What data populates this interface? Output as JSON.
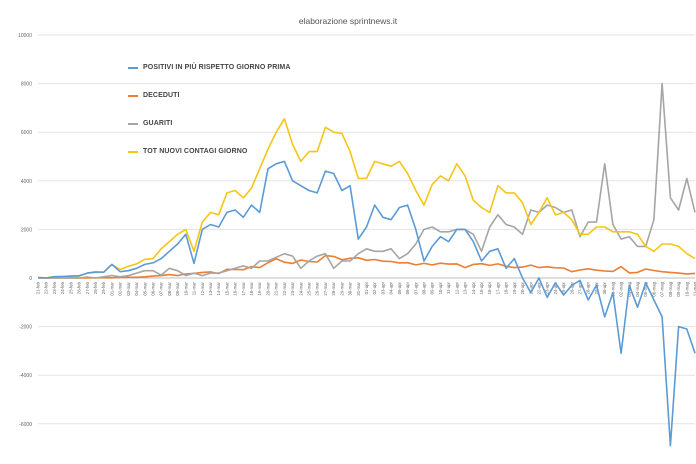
{
  "chart_data": {
    "type": "line",
    "title": "elaborazione sprintnews.it",
    "ylim": [
      -7000,
      10000
    ],
    "yticks": [
      -6000,
      -4000,
      -2000,
      0,
      2000,
      4000,
      6000,
      8000,
      10000
    ],
    "ytick_labels": [
      "-6000",
      "-4000",
      "-2000",
      "0",
      "2000",
      "4000",
      "6000",
      "8000",
      "10000"
    ],
    "grid": true,
    "legend_position": "top-left",
    "categories": [
      "21-feb",
      "22-feb",
      "23-feb",
      "24-feb",
      "25-feb",
      "26-feb",
      "27-feb",
      "28-feb",
      "29-feb",
      "01-mar",
      "02-mar",
      "03-mar",
      "04-mar",
      "05-mar",
      "06-mar",
      "07-mar",
      "08-mar",
      "09-mar",
      "10-mar",
      "11-mar",
      "12-mar",
      "13-mar",
      "14-mar",
      "15-mar",
      "16-mar",
      "17-mar",
      "18-mar",
      "19-mar",
      "20-mar",
      "21-mar",
      "22-mar",
      "23-mar",
      "24-mar",
      "25-mar",
      "26-mar",
      "27-mar",
      "28-mar",
      "29-mar",
      "30-mar",
      "31-mar",
      "01-apr",
      "02-apr",
      "03-apr",
      "04-apr",
      "05-apr",
      "06-apr",
      "07-apr",
      "08-apr",
      "09-apr",
      "10-apr",
      "11-apr",
      "12-apr",
      "13-apr",
      "14-apr",
      "15-apr",
      "16-apr",
      "17-apr",
      "18-apr",
      "19-apr",
      "20-apr",
      "21-apr",
      "22-apr",
      "23-apr",
      "24-apr",
      "25-apr",
      "26-apr",
      "27-apr",
      "28-apr",
      "29-apr",
      "30-apr",
      "01-mag",
      "02-mag",
      "03-mag",
      "04-mag",
      "05-mag",
      "06-mag",
      "07-mag",
      "08-mag",
      "09-mag",
      "10-mag",
      "11-mag"
    ],
    "series": [
      {
        "name": "POSITIVI IN PIÙ RISPETTO GIORNO PRIMA",
        "color": "#5b9bd5",
        "values": [
          20,
          0,
          50,
          60,
          80,
          90,
          200,
          250,
          240,
          560,
          260,
          300,
          400,
          560,
          620,
          800,
          1100,
          1400,
          1800,
          600,
          2000,
          2200,
          2100,
          2700,
          2800,
          2500,
          3000,
          2700,
          4500,
          4700,
          4800,
          4000,
          3800,
          3600,
          3500,
          4400,
          4300,
          3600,
          3800,
          1600,
          2100,
          3000,
          2500,
          2400,
          2900,
          3000,
          2000,
          700,
          1300,
          1700,
          1500,
          2000,
          2000,
          1500,
          700,
          1100,
          1200,
          400,
          800,
          0,
          -600,
          0,
          -800,
          -200,
          -700,
          -300,
          -100,
          -900,
          -300,
          -1600,
          -600,
          -3100,
          -300,
          -1200,
          -200,
          -900,
          -1600,
          -6900,
          -2000,
          -2100,
          -3100
        ]
      },
      {
        "name": "DECEDUTI",
        "color": "#ed7d31",
        "values": [
          0,
          0,
          0,
          0,
          5,
          5,
          5,
          10,
          10,
          10,
          20,
          30,
          30,
          50,
          80,
          100,
          140,
          100,
          170,
          190,
          230,
          250,
          180,
          360,
          350,
          340,
          470,
          430,
          630,
          790,
          650,
          600,
          740,
          680,
          660,
          920,
          890,
          750,
          810,
          830,
          730,
          760,
          690,
          680,
          620,
          630,
          540,
          600,
          540,
          610,
          570,
          580,
          430,
          560,
          590,
          520,
          580,
          480,
          430,
          450,
          530,
          430,
          460,
          420,
          410,
          260,
          330,
          380,
          320,
          290,
          270,
          470,
          210,
          230,
          370,
          310,
          260,
          230,
          200,
          170,
          190
        ]
      },
      {
        "name": "GUARITI",
        "color": "#a5a5a5",
        "values": [
          0,
          0,
          0,
          0,
          0,
          0,
          40,
          0,
          50,
          100,
          50,
          100,
          200,
          300,
          300,
          120,
          400,
          300,
          100,
          200,
          100,
          200,
          200,
          300,
          400,
          500,
          400,
          700,
          700,
          850,
          1000,
          900,
          400,
          700,
          900,
          1000,
          400,
          700,
          700,
          1000,
          1200,
          1100,
          1100,
          1200,
          800,
          1000,
          1400,
          2000,
          2100,
          1900,
          1900,
          2000,
          2000,
          1800,
          1100,
          2100,
          2600,
          2200,
          2100,
          1800,
          2800,
          2700,
          3000,
          2900,
          2700,
          2800,
          1700,
          2300,
          2300,
          4700,
          2200,
          1600,
          1700,
          1300,
          1300,
          2400,
          8000,
          3300,
          2800,
          4100,
          2700
        ]
      },
      {
        "name": "TOT NUOVI CONTAGI GIORNO",
        "color": "#f5c518",
        "values": [
          20,
          10,
          60,
          60,
          80,
          80,
          200,
          230,
          240,
          560,
          350,
          480,
          580,
          770,
          800,
          1200,
          1500,
          1800,
          2000,
          1100,
          2300,
          2700,
          2600,
          3500,
          3600,
          3300,
          3700,
          4500,
          5300,
          6000,
          6550,
          5500,
          4800,
          5200,
          5200,
          6200,
          6000,
          5950,
          5200,
          4100,
          4100,
          4800,
          4700,
          4600,
          4800,
          4300,
          3600,
          3000,
          3850,
          4200,
          4000,
          4700,
          4200,
          3200,
          2900,
          2700,
          3800,
          3500,
          3500,
          3100,
          2200,
          2700,
          3300,
          2600,
          2700,
          2400,
          1800,
          1800,
          2100,
          2100,
          1900,
          1900,
          1900,
          1800,
          1300,
          1100,
          1400,
          1400,
          1300,
          1000,
          800
        ]
      }
    ]
  }
}
